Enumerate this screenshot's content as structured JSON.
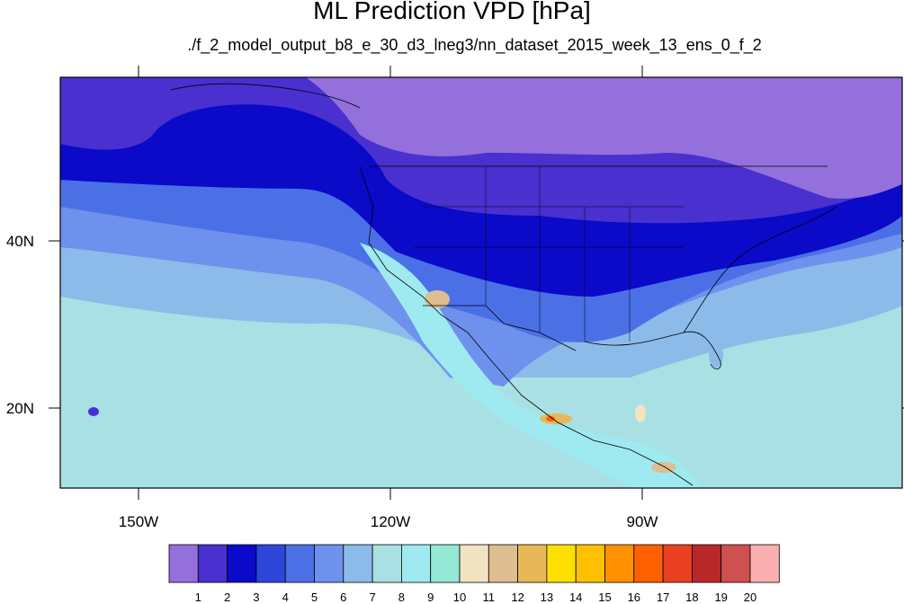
{
  "title": "ML Prediction VPD [hPa]",
  "subtitle": "./f_2_model_output_b8_e_30_d3_lneg3/nn_dataset_2015_week_13_ens_0_f_2",
  "map": {
    "lon_labels": [
      "150W",
      "120W",
      "90W"
    ],
    "lat_labels": [
      "40N",
      "20N"
    ],
    "land_border_color": "#000000"
  },
  "colorbar": {
    "labels": [
      "1",
      "2",
      "3",
      "4",
      "5",
      "6",
      "7",
      "8",
      "9",
      "10",
      "11",
      "12",
      "13",
      "14",
      "15",
      "16",
      "17",
      "18",
      "19",
      "20"
    ],
    "colors": [
      "#9370db",
      "#4930cf",
      "#0a0ac8",
      "#2e46dc",
      "#4b70e6",
      "#6e91ee",
      "#8cbbea",
      "#a8e0e3",
      "#9eeaf0",
      "#96e8d6",
      "#f2e3c2",
      "#ddbe90",
      "#e8b858",
      "#fde000",
      "#ffc000",
      "#ff9000",
      "#ff6000",
      "#e84020",
      "#b82828",
      "#d05050",
      "#fab0b0"
    ]
  }
}
